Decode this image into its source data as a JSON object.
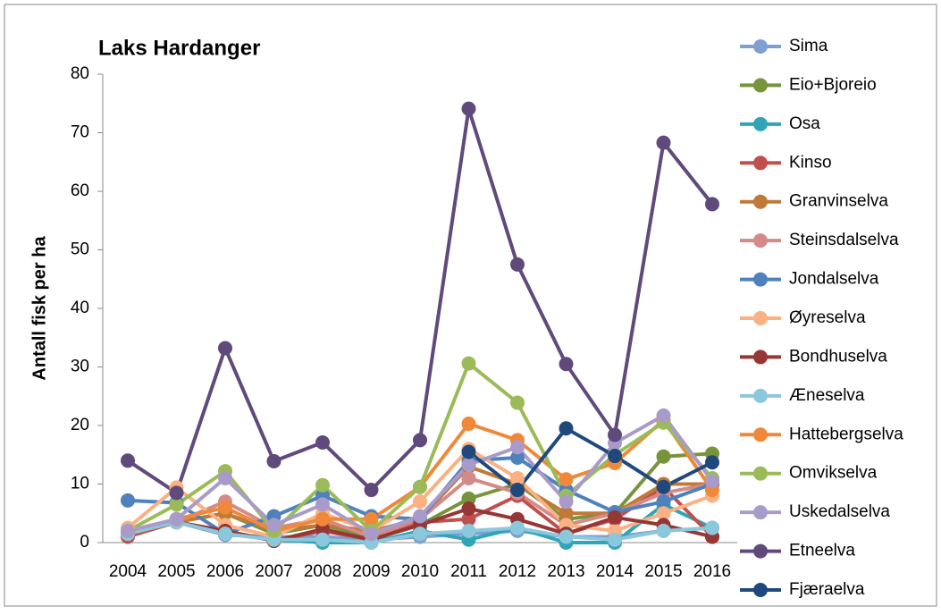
{
  "chart_data": {
    "type": "line",
    "title": "Laks Hardanger",
    "y_label": "Antall fisk per ha",
    "categories": [
      "2004",
      "2005",
      "2006",
      "2007",
      "2008",
      "2009",
      "2010",
      "2011",
      "2012",
      "2013",
      "2014",
      "2015",
      "2016"
    ],
    "ylim": [
      0,
      80
    ],
    "yticks": [
      0,
      10,
      20,
      30,
      40,
      50,
      60,
      70,
      80
    ],
    "legend": "right",
    "series": [
      {
        "name": "Sima",
        "color": "#7f9fd3",
        "values": [
          1.8,
          3.5,
          1.3,
          1,
          1,
          0.5,
          1,
          1.5,
          2,
          1,
          1,
          2,
          2.5
        ]
      },
      {
        "name": "Eio+Bjoreio",
        "color": "#77933c",
        "values": [
          1.5,
          3.5,
          5,
          1.5,
          3,
          1,
          3,
          7.5,
          10,
          4,
          5,
          14.7,
          15.2
        ]
      },
      {
        "name": "Osa",
        "color": "#31a5b8",
        "values": [
          1.5,
          3.5,
          1.5,
          0.5,
          0,
          0,
          2,
          0.5,
          2.5,
          0,
          0,
          6.5,
          2.5
        ]
      },
      {
        "name": "Kinso",
        "color": "#c0504d",
        "values": [
          1,
          3.5,
          2,
          0.3,
          2,
          0.5,
          3.5,
          4,
          8,
          1.5,
          4,
          9.5,
          1
        ]
      },
      {
        "name": "Granvinselva",
        "color": "#c07a37",
        "values": [
          1.5,
          3.5,
          5,
          2,
          3,
          2,
          4,
          13,
          10,
          5,
          5,
          10,
          10
        ]
      },
      {
        "name": "Steinsdalselva",
        "color": "#d48a88",
        "values": [
          2,
          3.5,
          7,
          2.5,
          4,
          1,
          4,
          11,
          8.5,
          3,
          5,
          8.5,
          10
        ]
      },
      {
        "name": "Jondalselva",
        "color": "#4f81bd",
        "values": [
          7.2,
          6.8,
          1.5,
          4.5,
          8,
          4.5,
          4,
          14,
          14.5,
          9,
          5.2,
          7,
          10
        ]
      },
      {
        "name": "Øyreselva",
        "color": "#fab183",
        "values": [
          2.5,
          9.4,
          3,
          1,
          5,
          2,
          7,
          16,
          11,
          3,
          2,
          5,
          8
        ]
      },
      {
        "name": "Bondhuselva",
        "color": "#953735",
        "values": [
          1.5,
          3.5,
          2,
          0.3,
          2.3,
          0.5,
          3,
          5.8,
          4,
          1.5,
          4.3,
          3,
          1
        ]
      },
      {
        "name": "Æneselva",
        "color": "#8cc8dc",
        "values": [
          1.5,
          3.5,
          1.5,
          0.5,
          0.5,
          0,
          1.5,
          2,
          2.5,
          1,
          0.5,
          2,
          2.5
        ]
      },
      {
        "name": "Hattebergselva",
        "color": "#f0883a",
        "values": [
          2,
          4,
          6,
          2,
          4,
          4,
          9.5,
          20.3,
          17.5,
          10.8,
          13.6,
          20.9,
          9
        ]
      },
      {
        "name": "Omvikselva",
        "color": "#9bbb59",
        "values": [
          2,
          6.5,
          12.2,
          2,
          9.8,
          2,
          9.5,
          30.6,
          23.9,
          8,
          15,
          20.5,
          11
        ]
      },
      {
        "name": "Uskedalselva",
        "color": "#a99bc9",
        "values": [
          2,
          4,
          11,
          3,
          6.5,
          1.5,
          4.5,
          13.3,
          16.3,
          7,
          17,
          21.7,
          10.5
        ]
      },
      {
        "name": "Etneelva",
        "color": "#604a7b",
        "values": [
          14,
          8.5,
          33.2,
          13.9,
          17.1,
          9,
          17.5,
          74.1,
          47.5,
          30.5,
          18.4,
          68.3,
          57.8
        ]
      },
      {
        "name": "Fjæraelva",
        "color": "#1f497d",
        "values": [
          null,
          null,
          null,
          null,
          null,
          null,
          null,
          15.5,
          9,
          19.5,
          14.8,
          9.5,
          13.7
        ]
      }
    ]
  }
}
